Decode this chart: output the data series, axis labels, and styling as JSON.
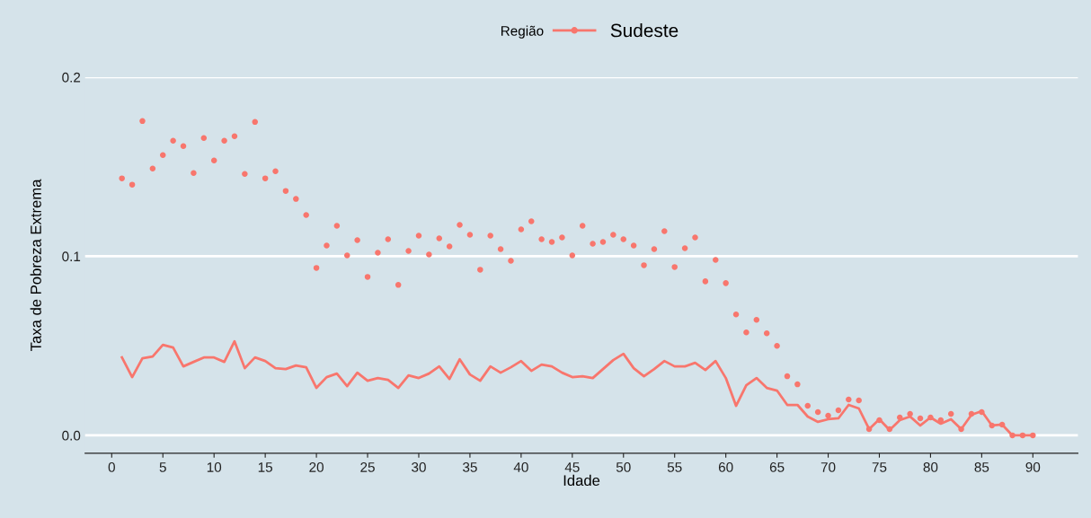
{
  "chart_data": {
    "type": "scatter",
    "xlabel": "Idade",
    "ylabel": "Taxa de Pobreza Extrema",
    "legend_title": "Região",
    "legend": "top",
    "grid": "y",
    "xlim": [
      -2.6,
      94.4
    ],
    "ylim": [
      -0.01,
      0.2
    ],
    "xticks": [
      0,
      5,
      10,
      15,
      20,
      25,
      30,
      35,
      40,
      45,
      50,
      55,
      60,
      65,
      70,
      75,
      80,
      85,
      90
    ],
    "yticks": [
      {
        "value": 0,
        "label": "0.0"
      },
      {
        "value": 0.1,
        "label": "0.1"
      },
      {
        "value": 0.2,
        "label": "0.2"
      }
    ],
    "x": [
      1,
      2,
      3,
      4,
      5,
      6,
      7,
      8,
      9,
      10,
      11,
      12,
      13,
      14,
      15,
      16,
      17,
      18,
      19,
      20,
      21,
      22,
      23,
      24,
      25,
      26,
      27,
      28,
      29,
      30,
      31,
      32,
      33,
      34,
      35,
      36,
      37,
      38,
      39,
      40,
      41,
      42,
      43,
      44,
      45,
      46,
      47,
      48,
      49,
      50,
      51,
      52,
      53,
      54,
      55,
      56,
      57,
      58,
      59,
      60,
      61,
      62,
      63,
      64,
      65,
      66,
      67,
      68,
      69,
      70,
      71,
      72,
      73,
      74,
      75,
      76,
      77,
      78,
      79,
      80,
      81,
      82,
      83,
      84,
      85,
      86,
      87,
      88,
      89,
      90
    ],
    "series": [
      {
        "name": "Sudeste",
        "marker": "circle",
        "color": "#f8766d",
        "values": [
          0.1435,
          0.14,
          0.1755,
          0.149,
          0.1565,
          0.1645,
          0.1615,
          0.1465,
          0.166,
          0.1535,
          0.1645,
          0.167,
          0.146,
          0.175,
          0.1435,
          0.1475,
          0.1365,
          0.132,
          0.123,
          0.0935,
          0.106,
          0.117,
          0.1005,
          0.109,
          0.0885,
          0.102,
          0.1095,
          0.084,
          0.103,
          0.1115,
          0.101,
          0.11,
          0.1055,
          0.1175,
          0.112,
          0.0925,
          0.1115,
          0.104,
          0.0975,
          0.115,
          0.1195,
          0.1095,
          0.108,
          0.1105,
          0.1005,
          0.117,
          0.107,
          0.108,
          0.112,
          0.1095,
          0.106,
          0.095,
          0.104,
          0.114,
          0.094,
          0.1045,
          0.1105,
          0.086,
          0.098,
          0.085,
          0.0675,
          0.0575,
          0.0645,
          0.057,
          0.05,
          0.033,
          0.0285,
          0.0165,
          0.013,
          0.011,
          0.014,
          0.02,
          0.0195,
          0.0035,
          0.0085,
          0.0035,
          0.01,
          0.012,
          0.0095,
          0.01,
          0.0085,
          0.012,
          0.0035,
          0.012,
          0.013,
          0.0055,
          0.006,
          0,
          0,
          0
        ]
      },
      {
        "type": "line",
        "line_style": "solid",
        "color": "#f8766d",
        "values": [
          0.0435,
          0.0325,
          0.043,
          0.044,
          0.0505,
          0.049,
          0.0385,
          0.041,
          0.0435,
          0.0435,
          0.041,
          0.0525,
          0.0375,
          0.0435,
          0.0415,
          0.0375,
          0.037,
          0.039,
          0.038,
          0.0265,
          0.0325,
          0.0345,
          0.0275,
          0.035,
          0.0305,
          0.032,
          0.031,
          0.0265,
          0.0335,
          0.032,
          0.0345,
          0.0385,
          0.0315,
          0.0425,
          0.034,
          0.0305,
          0.0385,
          0.035,
          0.038,
          0.0415,
          0.036,
          0.0395,
          0.0385,
          0.035,
          0.0325,
          0.033,
          0.032,
          0.037,
          0.042,
          0.0455,
          0.0375,
          0.033,
          0.037,
          0.0415,
          0.0385,
          0.0385,
          0.0405,
          0.0365,
          0.0415,
          0.032,
          0.0165,
          0.028,
          0.032,
          0.0265,
          0.025,
          0.017,
          0.017,
          0.0105,
          0.0075,
          0.009,
          0.0095,
          0.017,
          0.015,
          0.0035,
          0.009,
          0.003,
          0.0085,
          0.0105,
          0.0055,
          0.01,
          0.0065,
          0.009,
          0.0035,
          0.0115,
          0.0135,
          0.0055,
          0.006,
          0,
          0,
          0
        ]
      }
    ]
  }
}
